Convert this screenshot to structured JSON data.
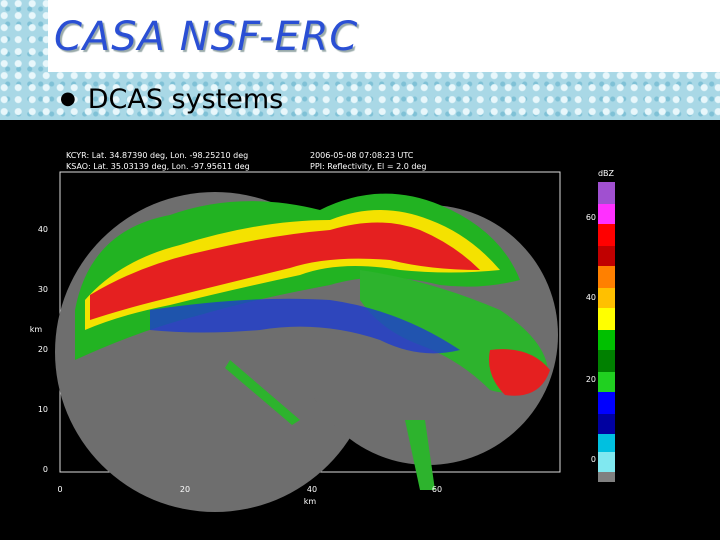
{
  "header": {
    "title": "CASA NSF-ERC"
  },
  "bullet": "DCAS systems",
  "radar": {
    "info": [
      "KCYR: Lat. 34.87390 deg, Lon. -98.25210 deg",
      "KSAO: Lat. 35.03139 deg, Lon. -97.95611 deg",
      "2006-05-08 07:08:23 UTC",
      "PPI: Reflectivity, El = 2.0 deg"
    ],
    "yticks": [
      "0",
      "10",
      "20",
      "30",
      "40"
    ],
    "xticks": [
      "0",
      "20",
      "40",
      "60"
    ],
    "xlabel": "km",
    "ylabel": "km",
    "colorbar": {
      "label": "dBZ",
      "ticks": [
        "0",
        "20",
        "40",
        "60"
      ]
    }
  }
}
